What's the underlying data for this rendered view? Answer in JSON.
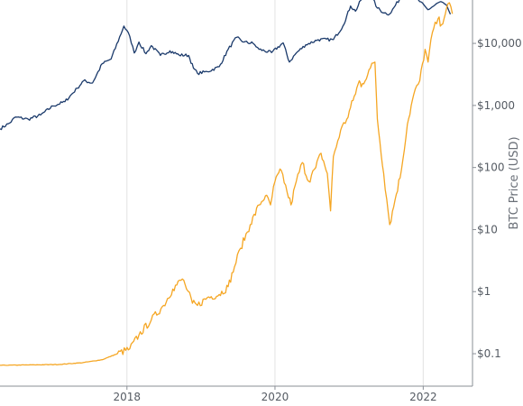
{
  "chart_data": {
    "type": "line",
    "title": "",
    "xlabel": "",
    "ylabel": "BTC Price (USD)",
    "y_scale": "log",
    "ylim": [
      0.03,
      50000
    ],
    "xlim": [
      "2016-04-15",
      "2022-09-01"
    ],
    "x_ticks": [
      {
        "date": "2018-01-01",
        "label": "2018"
      },
      {
        "date": "2020-01-01",
        "label": "2020"
      },
      {
        "date": "2022-01-01",
        "label": "2022"
      }
    ],
    "y_ticks": [
      {
        "value": 0.1,
        "label": "$0.1"
      },
      {
        "value": 1,
        "label": "$1"
      },
      {
        "value": 10,
        "label": "$10"
      },
      {
        "value": 100,
        "label": "$100"
      },
      {
        "value": 1000,
        "label": "$1,000"
      },
      {
        "value": 10000,
        "label": "$10,000"
      }
    ],
    "grid": {
      "vertical": true,
      "horizontal": false
    },
    "series": [
      {
        "color": "#1b3a6b",
        "points": [
          [
            "2016-04-15",
            420
          ],
          [
            "2016-06-01",
            520
          ],
          [
            "2016-07-01",
            650
          ],
          [
            "2016-09-01",
            600
          ],
          [
            "2016-11-01",
            700
          ],
          [
            "2017-01-01",
            980
          ],
          [
            "2017-03-01",
            1150
          ],
          [
            "2017-05-01",
            1900
          ],
          [
            "2017-06-01",
            2500
          ],
          [
            "2017-07-15",
            2300
          ],
          [
            "2017-09-01",
            4700
          ],
          [
            "2017-10-15",
            5600
          ],
          [
            "2017-12-17",
            19000
          ],
          [
            "2018-01-15",
            13000
          ],
          [
            "2018-02-06",
            7000
          ],
          [
            "2018-03-01",
            10500
          ],
          [
            "2018-04-05",
            6800
          ],
          [
            "2018-05-01",
            9200
          ],
          [
            "2018-06-15",
            6400
          ],
          [
            "2018-08-01",
            7600
          ],
          [
            "2018-09-15",
            6500
          ],
          [
            "2018-11-01",
            6400
          ],
          [
            "2018-11-25",
            4000
          ],
          [
            "2018-12-15",
            3300
          ],
          [
            "2019-02-01",
            3500
          ],
          [
            "2019-04-01",
            4200
          ],
          [
            "2019-05-15",
            8000
          ],
          [
            "2019-06-26",
            12500
          ],
          [
            "2019-08-01",
            10500
          ],
          [
            "2019-09-15",
            10000
          ],
          [
            "2019-10-15",
            8000
          ],
          [
            "2019-12-15",
            7100
          ],
          [
            "2020-02-10",
            10200
          ],
          [
            "2020-03-12",
            5000
          ],
          [
            "2020-04-15",
            7000
          ],
          [
            "2020-06-01",
            9500
          ],
          [
            "2020-08-01",
            11500
          ],
          [
            "2020-10-15",
            11500
          ],
          [
            "2020-12-01",
            19000
          ],
          [
            "2021-01-08",
            40000
          ],
          [
            "2021-02-01",
            33000
          ],
          [
            "2021-03-13",
            61000
          ],
          [
            "2021-04-14",
            63000
          ],
          [
            "2021-05-20",
            37000
          ],
          [
            "2021-06-22",
            31000
          ],
          [
            "2021-07-20",
            29800
          ],
          [
            "2021-09-07",
            52000
          ],
          [
            "2021-10-20",
            65000
          ],
          [
            "2021-11-10",
            68000
          ],
          [
            "2021-12-15",
            47000
          ],
          [
            "2022-01-24",
            35000
          ],
          [
            "2022-03-28",
            47000
          ],
          [
            "2022-05-01",
            38000
          ],
          [
            "2022-05-15",
            29500
          ]
        ]
      },
      {
        "color": "#f5a623",
        "points": [
          [
            "2016-04-15",
            0.065
          ],
          [
            "2016-10-01",
            0.066
          ],
          [
            "2017-02-01",
            0.067
          ],
          [
            "2017-06-01",
            0.072
          ],
          [
            "2017-09-01",
            0.08
          ],
          [
            "2017-11-15",
            0.1
          ],
          [
            "2018-01-15",
            0.12
          ],
          [
            "2018-03-01",
            0.2
          ],
          [
            "2018-05-01",
            0.35
          ],
          [
            "2018-07-01",
            0.6
          ],
          [
            "2018-08-15",
            1.1
          ],
          [
            "2018-10-01",
            1.6
          ],
          [
            "2018-10-15",
            1.3
          ],
          [
            "2018-11-20",
            0.65
          ],
          [
            "2018-12-15",
            0.6
          ],
          [
            "2019-02-01",
            0.8
          ],
          [
            "2019-04-01",
            0.9
          ],
          [
            "2019-05-15",
            1.2
          ],
          [
            "2019-06-15",
            2.5
          ],
          [
            "2019-07-15",
            5
          ],
          [
            "2019-09-01",
            12
          ],
          [
            "2019-10-15",
            25
          ],
          [
            "2019-11-15",
            35
          ],
          [
            "2019-12-10",
            25
          ],
          [
            "2020-01-01",
            60
          ],
          [
            "2020-02-01",
            90
          ],
          [
            "2020-03-01",
            40
          ],
          [
            "2020-03-20",
            25
          ],
          [
            "2020-04-15",
            60
          ],
          [
            "2020-05-15",
            120
          ],
          [
            "2020-06-15",
            60
          ],
          [
            "2020-07-20",
            100
          ],
          [
            "2020-08-15",
            170
          ],
          [
            "2020-09-15",
            80
          ],
          [
            "2020-10-01",
            20
          ],
          [
            "2020-10-15",
            150
          ],
          [
            "2020-11-20",
            400
          ],
          [
            "2020-12-20",
            600
          ],
          [
            "2021-01-20",
            1200
          ],
          [
            "2021-02-20",
            2500
          ],
          [
            "2021-03-01",
            2000
          ],
          [
            "2021-04-15",
            4000
          ],
          [
            "2021-05-08",
            5000
          ],
          [
            "2021-05-20",
            600
          ],
          [
            "2021-06-20",
            80
          ],
          [
            "2021-07-20",
            12
          ],
          [
            "2021-08-15",
            30
          ],
          [
            "2021-09-15",
            90
          ],
          [
            "2021-10-15",
            500
          ],
          [
            "2021-11-15",
            1500
          ],
          [
            "2021-12-15",
            2500
          ],
          [
            "2022-01-10",
            8000
          ],
          [
            "2022-01-25",
            5000
          ],
          [
            "2022-02-15",
            15000
          ],
          [
            "2022-03-15",
            25000
          ],
          [
            "2022-04-01",
            20000
          ],
          [
            "2022-04-20",
            30000
          ],
          [
            "2022-05-10",
            45000
          ],
          [
            "2022-05-25",
            30000
          ]
        ]
      }
    ]
  }
}
